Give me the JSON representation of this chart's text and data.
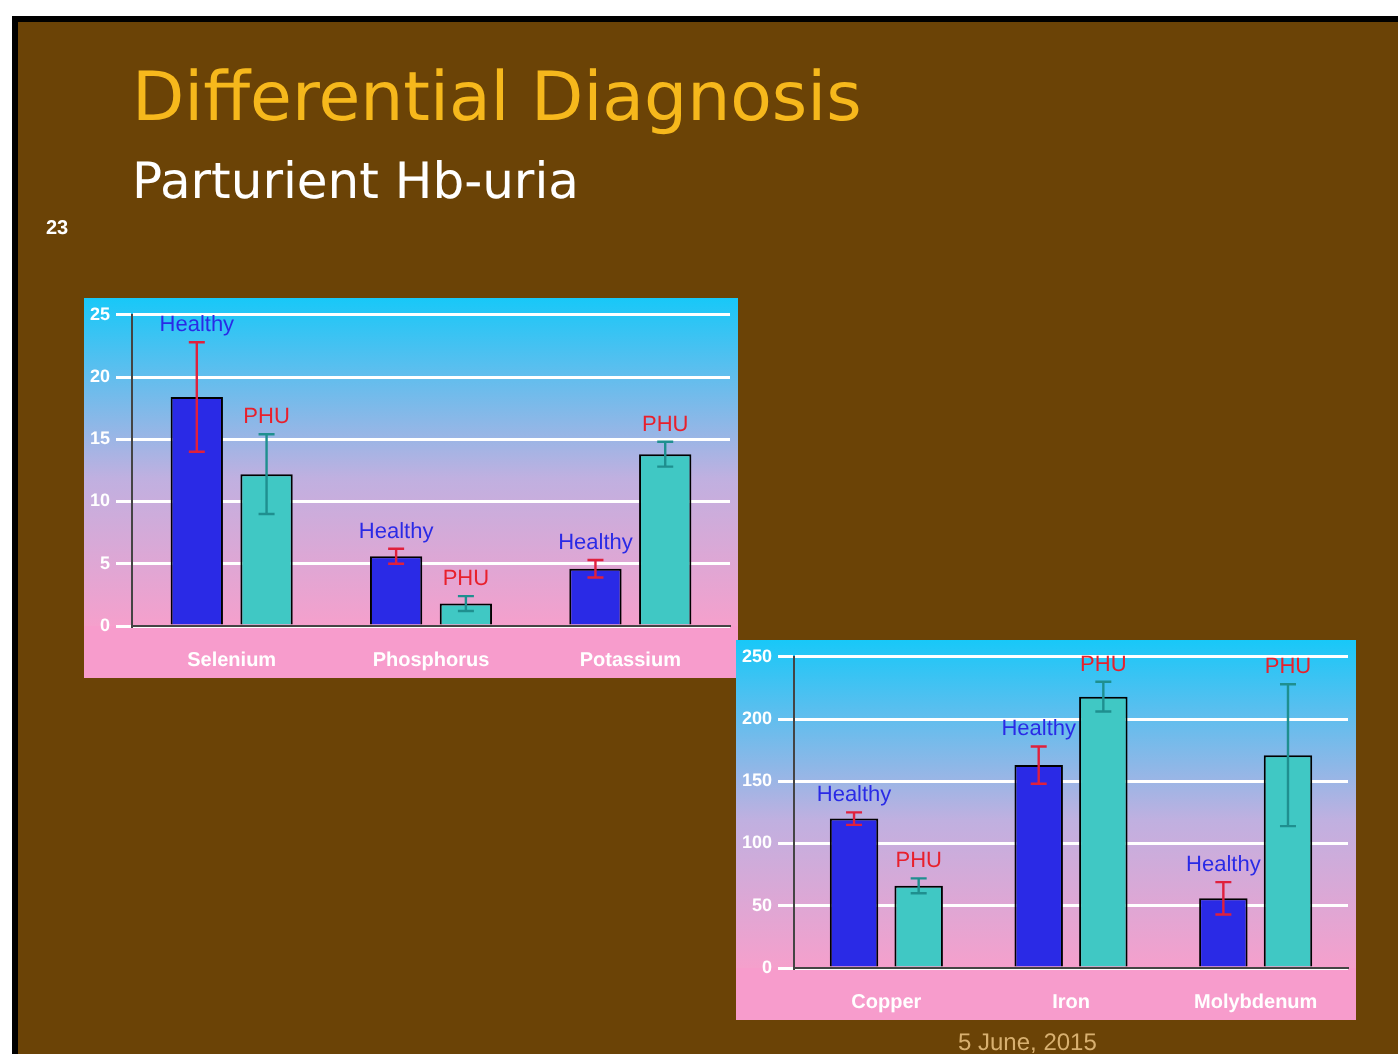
{
  "chart_data": [
    {
      "type": "bar",
      "title": "Differential Diagnosis",
      "subtitle": "Parturient Hb-uria",
      "annotations": [
        "23"
      ],
      "categories": [
        "Selenium",
        "Phosphorus",
        "Potassium"
      ],
      "series": [
        {
          "name": "Healthy",
          "color": "#2a2ae6",
          "values": [
            18.4,
            5.6,
            4.6
          ],
          "errors": [
            4.4,
            0.6,
            0.7
          ]
        },
        {
          "name": "PHU",
          "color": "#40c8c4",
          "values": [
            12.2,
            1.8,
            13.8
          ],
          "errors": [
            3.2,
            0.6,
            1.0
          ]
        }
      ],
      "ylim": [
        0,
        25
      ],
      "yticks": [
        0,
        5,
        10,
        15,
        20,
        25
      ],
      "grid": "y",
      "legend": false
    },
    {
      "type": "bar",
      "annotations": [
        "5 June, 2015"
      ],
      "categories": [
        "Copper",
        "Iron",
        "Molybdenum"
      ],
      "series": [
        {
          "name": "Healthy",
          "color": "#2a2ae6",
          "values": [
            120,
            163,
            56
          ],
          "errors": [
            5,
            15,
            13
          ]
        },
        {
          "name": "PHU",
          "color": "#40c8c4",
          "values": [
            66,
            218,
            171
          ],
          "errors": [
            6,
            12,
            57
          ]
        }
      ],
      "ylim": [
        0,
        250
      ],
      "yticks": [
        0,
        50,
        100,
        150,
        200,
        250
      ],
      "grid": "y",
      "legend": false
    }
  ]
}
